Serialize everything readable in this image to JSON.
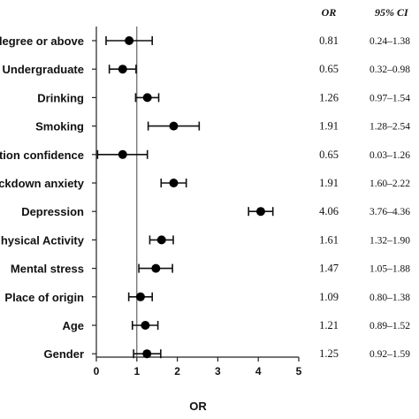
{
  "chart_data": {
    "type": "forest",
    "xlabel": "OR",
    "xlim": [
      0,
      5
    ],
    "xticks": [
      0,
      1,
      2,
      3,
      4,
      5
    ],
    "reference_line": 1,
    "columns": {
      "or_header": "OR",
      "ci_header": "95% CI"
    },
    "rows": [
      {
        "label": "degree or above",
        "or": 0.81,
        "lower": 0.24,
        "upper": 1.38,
        "or_text": "0.81",
        "ci_text": "0.24–1.38"
      },
      {
        "label": "Undergraduate",
        "or": 0.65,
        "lower": 0.32,
        "upper": 0.98,
        "or_text": "0.65",
        "ci_text": "0.32–0.98"
      },
      {
        "label": "Drinking",
        "or": 1.26,
        "lower": 0.97,
        "upper": 1.54,
        "or_text": "1.26",
        "ci_text": "0.97–1.54"
      },
      {
        "label": "Smoking",
        "or": 1.91,
        "lower": 1.28,
        "upper": 2.54,
        "or_text": "1.91",
        "ci_text": "1.28–2.54"
      },
      {
        "label": "tion confidence",
        "or": 0.65,
        "lower": 0.03,
        "upper": 1.26,
        "or_text": "0.65",
        "ci_text": "0.03–1.26"
      },
      {
        "label": "ckdown anxiety",
        "or": 1.91,
        "lower": 1.6,
        "upper": 2.22,
        "or_text": "1.91",
        "ci_text": "1.60–2.22"
      },
      {
        "label": "Depression",
        "or": 4.06,
        "lower": 3.76,
        "upper": 4.36,
        "or_text": "4.06",
        "ci_text": "3.76–4.36"
      },
      {
        "label": "hysical Activity",
        "or": 1.61,
        "lower": 1.32,
        "upper": 1.9,
        "or_text": "1.61",
        "ci_text": "1.32–1.90"
      },
      {
        "label": "Mental stress",
        "or": 1.47,
        "lower": 1.05,
        "upper": 1.88,
        "or_text": "1.47",
        "ci_text": "1.05–1.88"
      },
      {
        "label": "Place of origin",
        "or": 1.09,
        "lower": 0.8,
        "upper": 1.38,
        "or_text": "1.09",
        "ci_text": "0.80–1.38"
      },
      {
        "label": "Age",
        "or": 1.21,
        "lower": 0.89,
        "upper": 1.52,
        "or_text": "1.21",
        "ci_text": "0.89–1.52"
      },
      {
        "label": "Gender",
        "or": 1.25,
        "lower": 0.92,
        "upper": 1.59,
        "or_text": "1.25",
        "ci_text": "0.92–1.59"
      }
    ]
  }
}
